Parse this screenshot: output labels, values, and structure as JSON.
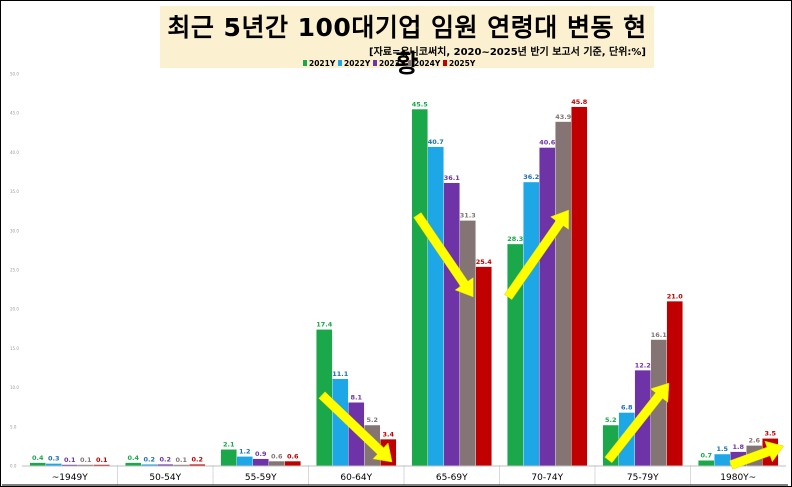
{
  "chart_data": {
    "type": "bar",
    "title": "최근 5년간 100대기업 임원 연령대 변동 현황",
    "subtitle": "[자료=유니코써치, 2020~2025년 반기 보고서 기준, 단위:%]",
    "xlabel": "",
    "ylabel": "",
    "ylim": [
      0,
      50
    ],
    "yticks": [
      "0.0",
      "5.0",
      "10.0",
      "15.0",
      "20.0",
      "25.0",
      "30.0",
      "35.0",
      "40.0",
      "45.0",
      "50.0"
    ],
    "grid": false,
    "legend_position": "top",
    "categories": [
      "~1949Y",
      "50-54Y",
      "55-59Y",
      "60-64Y",
      "65-69Y",
      "70-74Y",
      "75-79Y",
      "1980Y~"
    ],
    "series": [
      {
        "name": "2021Y",
        "color": "#1aa84a",
        "values": [
          0.4,
          0.4,
          2.1,
          17.4,
          45.5,
          28.3,
          5.2,
          0.7
        ]
      },
      {
        "name": "2022Y",
        "color": "#1ea7e6",
        "values": [
          0.3,
          0.2,
          1.2,
          11.1,
          40.7,
          36.2,
          6.8,
          1.5
        ]
      },
      {
        "name": "2023Y",
        "color": "#6e33a6",
        "values": [
          0.1,
          0.2,
          0.9,
          8.1,
          36.1,
          40.6,
          12.2,
          1.8
        ]
      },
      {
        "name": "2024Y",
        "color": "#847474",
        "values": [
          0.1,
          0.1,
          0.6,
          5.2,
          31.3,
          43.9,
          16.1,
          2.6
        ]
      },
      {
        "name": "2025Y",
        "color": "#c00000",
        "values": [
          0.1,
          0.2,
          0.6,
          3.4,
          25.4,
          45.8,
          21.0,
          3.5
        ]
      }
    ],
    "label_colors": [
      "#1aa84a",
      "#1a70b0",
      "#6e33a6",
      "#847474",
      "#c00000"
    ],
    "annotations": [
      {
        "type": "arrow",
        "color": "#ffff00",
        "category": "60-64Y",
        "direction": "down"
      },
      {
        "type": "arrow",
        "color": "#ffff00",
        "category": "65-69Y",
        "direction": "down"
      },
      {
        "type": "arrow",
        "color": "#ffff00",
        "category": "70-74Y",
        "direction": "up"
      },
      {
        "type": "arrow",
        "color": "#ffff00",
        "category": "75-79Y",
        "direction": "up"
      },
      {
        "type": "arrow",
        "color": "#ffff00",
        "category": "1980Y~",
        "direction": "up"
      }
    ]
  }
}
